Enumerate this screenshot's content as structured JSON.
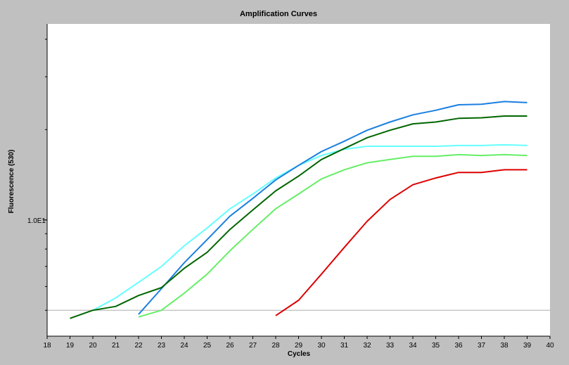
{
  "chart_data": {
    "type": "line",
    "title": "Amplification Curves",
    "xlabel": "Cycles",
    "ylabel": "Fluorescence (530)",
    "xlim": [
      18,
      40
    ],
    "ylim": [
      4.1,
      45
    ],
    "yscale": "log",
    "x_ticks": [
      "18",
      "19",
      "20",
      "21",
      "22",
      "23",
      "24",
      "25",
      "26",
      "27",
      "28",
      "29",
      "30",
      "31",
      "32",
      "33",
      "34",
      "35",
      "36",
      "37",
      "38",
      "39",
      "40"
    ],
    "y_tick_label": "1.0E1",
    "y_tick_value": 10,
    "threshold": {
      "value": 5,
      "color": "#c8c8c8"
    },
    "grid": false,
    "legend": "none",
    "colors": {
      "background": "#c0c0c0",
      "plot_background": "#ffffff",
      "axis": "#000000"
    },
    "series": [
      {
        "color": "#66ffff",
        "x": [
          20,
          21,
          22,
          23,
          24,
          25,
          26,
          27,
          28,
          29,
          30,
          31,
          32,
          33,
          34,
          35,
          36,
          37,
          38,
          39
        ],
        "y": [
          5.0,
          5.5,
          6.2,
          7.0,
          8.2,
          9.4,
          10.9,
          12.2,
          13.8,
          15.2,
          16.4,
          17.2,
          17.6,
          17.6,
          17.6,
          17.6,
          17.7,
          17.7,
          17.8,
          17.7
        ]
      },
      {
        "color": "#1a7fe0",
        "x": [
          22,
          23,
          24,
          25,
          26,
          27,
          28,
          29,
          30,
          31,
          32,
          33,
          34,
          35,
          36,
          37,
          38,
          39
        ],
        "y": [
          4.85,
          5.9,
          7.2,
          8.6,
          10.3,
          11.8,
          13.6,
          15.2,
          16.9,
          18.3,
          19.9,
          21.2,
          22.4,
          23.2,
          24.2,
          24.3,
          24.8,
          24.6
        ]
      },
      {
        "color": "#006600",
        "x": [
          19,
          20,
          21,
          22,
          23,
          24,
          25,
          26,
          27,
          28,
          29,
          30,
          31,
          32,
          33,
          34,
          35,
          36,
          37,
          38,
          39
        ],
        "y": [
          4.7,
          5.0,
          5.15,
          5.6,
          5.95,
          6.9,
          7.8,
          9.3,
          10.8,
          12.5,
          14.0,
          15.9,
          17.3,
          18.8,
          19.9,
          20.9,
          21.2,
          21.8,
          21.9,
          22.2,
          22.2
        ]
      },
      {
        "color": "#66ee66",
        "x": [
          22,
          23,
          24,
          25,
          26,
          27,
          28,
          29,
          30,
          31,
          32,
          33,
          34,
          35,
          36,
          37,
          38,
          39
        ],
        "y": [
          4.75,
          5.0,
          5.7,
          6.6,
          7.9,
          9.3,
          10.9,
          12.2,
          13.7,
          14.7,
          15.5,
          15.9,
          16.3,
          16.3,
          16.5,
          16.4,
          16.5,
          16.4
        ]
      },
      {
        "color": "#dd0000",
        "x": [
          28,
          29,
          30,
          31,
          32,
          33,
          34,
          35,
          36,
          37,
          38,
          39
        ],
        "y": [
          4.8,
          5.4,
          6.6,
          8.1,
          9.9,
          11.7,
          13.1,
          13.8,
          14.4,
          14.4,
          14.7,
          14.7
        ]
      }
    ]
  }
}
